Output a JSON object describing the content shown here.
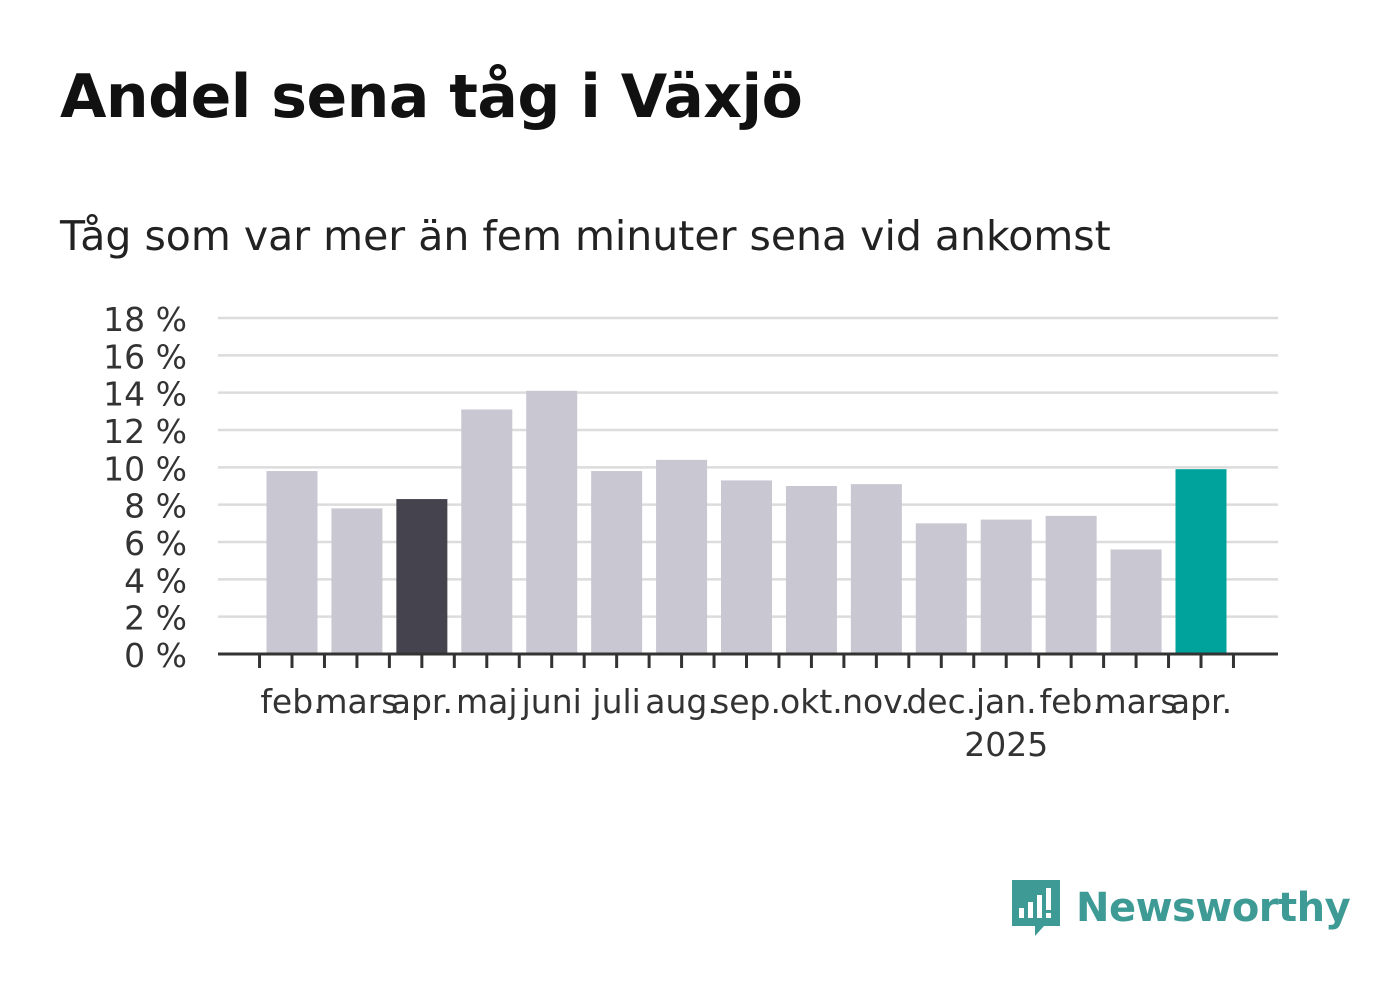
{
  "title": "Andel sena tåg i Växjö",
  "subtitle": "Tåg som var mer än fem minuter sena vid ankomst",
  "brand": {
    "name": "Newsworthy",
    "icon": "newsworthy-logo-icon",
    "color": "#3d9a94"
  },
  "chart_data": {
    "type": "bar",
    "categories": [
      "feb.",
      "mars",
      "apr.",
      "maj",
      "juni",
      "juli",
      "aug.",
      "sep.",
      "okt.",
      "nov.",
      "dec.",
      "jan.",
      "feb.",
      "mars",
      "apr."
    ],
    "year_label": "2025",
    "year_label_index": 11,
    "values": [
      9.8,
      7.8,
      8.3,
      13.1,
      14.1,
      9.8,
      10.4,
      9.3,
      9.0,
      9.1,
      7.0,
      7.2,
      7.4,
      5.6,
      9.9
    ],
    "ylim": [
      0,
      18
    ],
    "yticks": [
      0,
      2,
      4,
      6,
      8,
      10,
      12,
      14,
      16,
      18
    ],
    "ytick_labels": [
      "0 %",
      "2 %",
      "4 %",
      "6 %",
      "8 %",
      "10 %",
      "12 %",
      "14 %",
      "16 %",
      "18 %"
    ],
    "grid": true,
    "colors": {
      "default": "#c8c7d2",
      "highlight_previous": "#44434e",
      "highlight_current": "#00a39b"
    },
    "highlight": {
      "previous_index": 2,
      "current_index": 14
    }
  }
}
